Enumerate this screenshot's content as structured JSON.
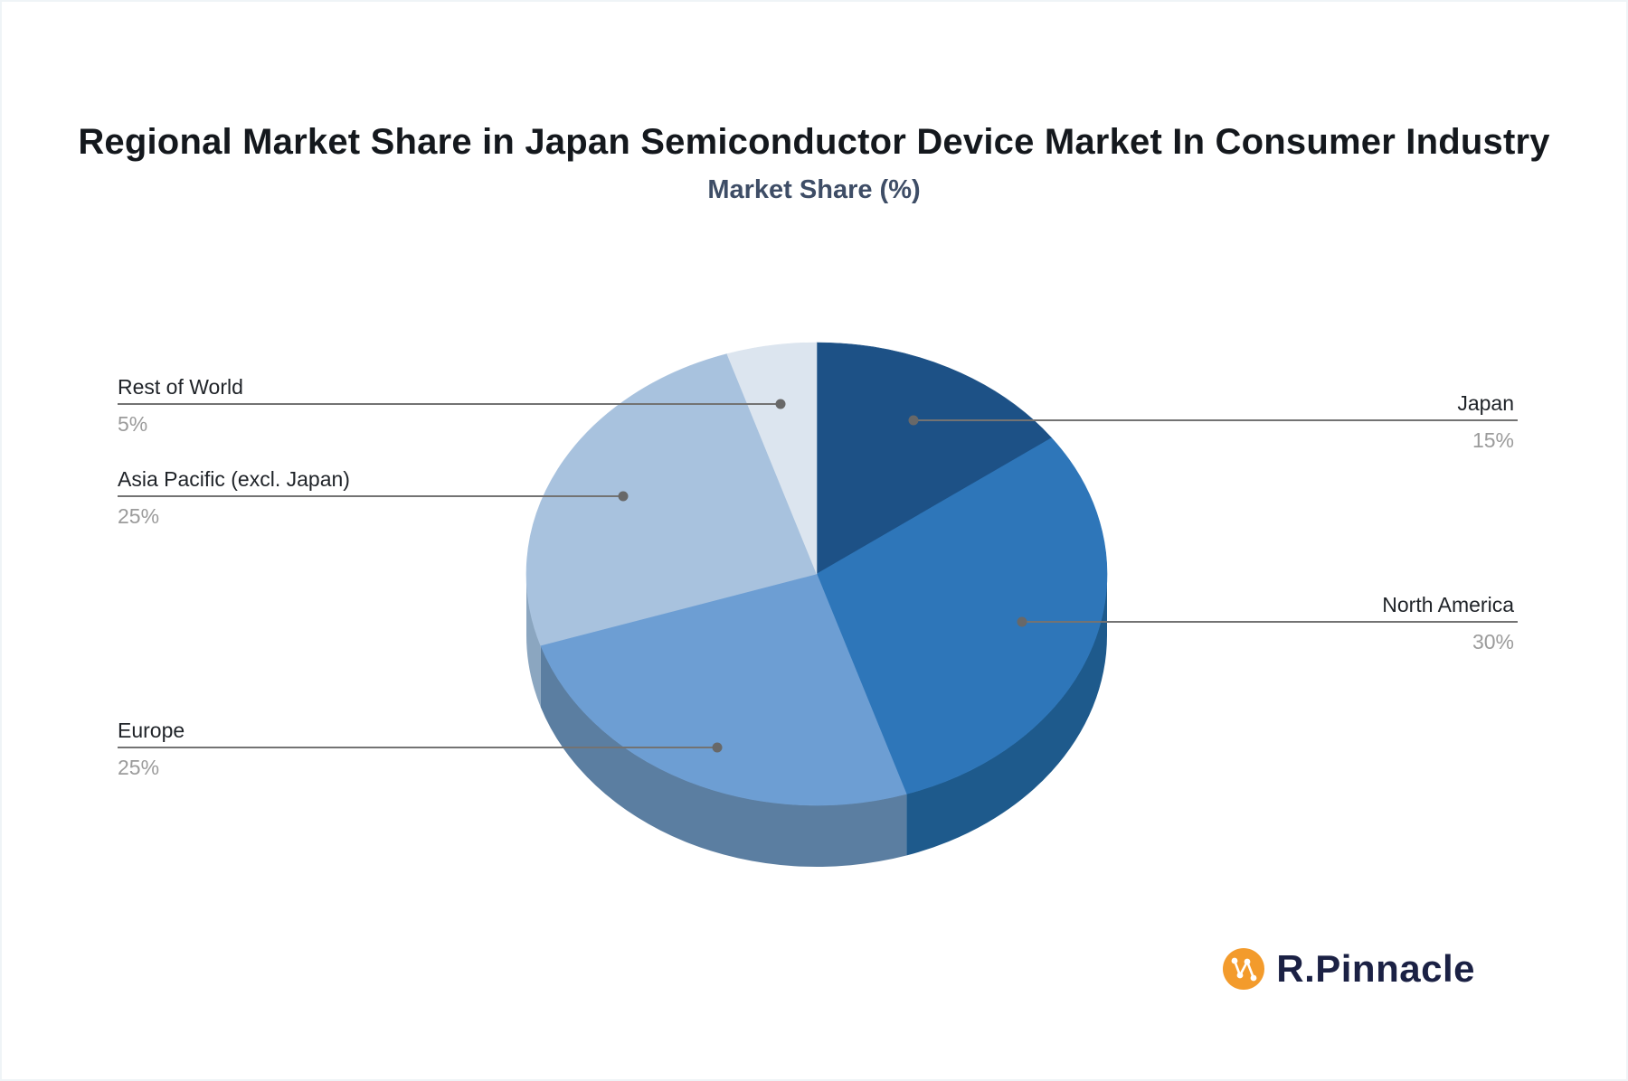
{
  "title": "Regional Market Share in Japan Semiconductor Device Market In Consumer Industry",
  "subtitle": "Market Share (%)",
  "logo": {
    "text": "R.Pinnacle",
    "icon": "network-nodes-icon",
    "icon_color": "#f39b2c",
    "icon_glyph_color": "#ffffff",
    "text_color": "#1b2144"
  },
  "style_colors": {
    "leader_line": "#737373",
    "leader_dot": "#686868",
    "label_text": "#1f2328",
    "value_text": "#9b9b9b",
    "title_text": "#14181d",
    "subtitle_text": "#3e4d66"
  },
  "chart_data": {
    "type": "pie",
    "title": "Regional Market Share in Japan Semiconductor Device Market In Consumer Industry",
    "subtitle": "Market Share (%)",
    "unit": "%",
    "effect": "3d",
    "direction": "clockwise",
    "start_angle_deg": 0,
    "legend_position": "none",
    "labels": [
      "Japan",
      "North America",
      "Europe",
      "Asia Pacific (excl. Japan)",
      "Rest of World"
    ],
    "values": [
      15,
      30,
      25,
      25,
      5
    ],
    "slices": [
      {
        "label": "Japan",
        "value": 15,
        "display": "15%",
        "color": "#1d5186",
        "side_color": "#1e5a8c",
        "label_side": "right"
      },
      {
        "label": "North America",
        "value": 30,
        "display": "30%",
        "color": "#2e76b9",
        "side_color": "#1e5a8c",
        "label_side": "right"
      },
      {
        "label": "Europe",
        "value": 25,
        "display": "25%",
        "color": "#6d9ed3",
        "side_color": "#5b7ea1",
        "label_side": "left"
      },
      {
        "label": "Asia Pacific (excl. Japan)",
        "value": 25,
        "display": "25%",
        "color": "#a8c2de",
        "side_color": "#8ba6c0",
        "label_side": "left"
      },
      {
        "label": "Rest of World",
        "value": 5,
        "display": "5%",
        "color": "#dce5ef",
        "side_color": "#c3d2e2",
        "label_side": "left"
      }
    ]
  }
}
